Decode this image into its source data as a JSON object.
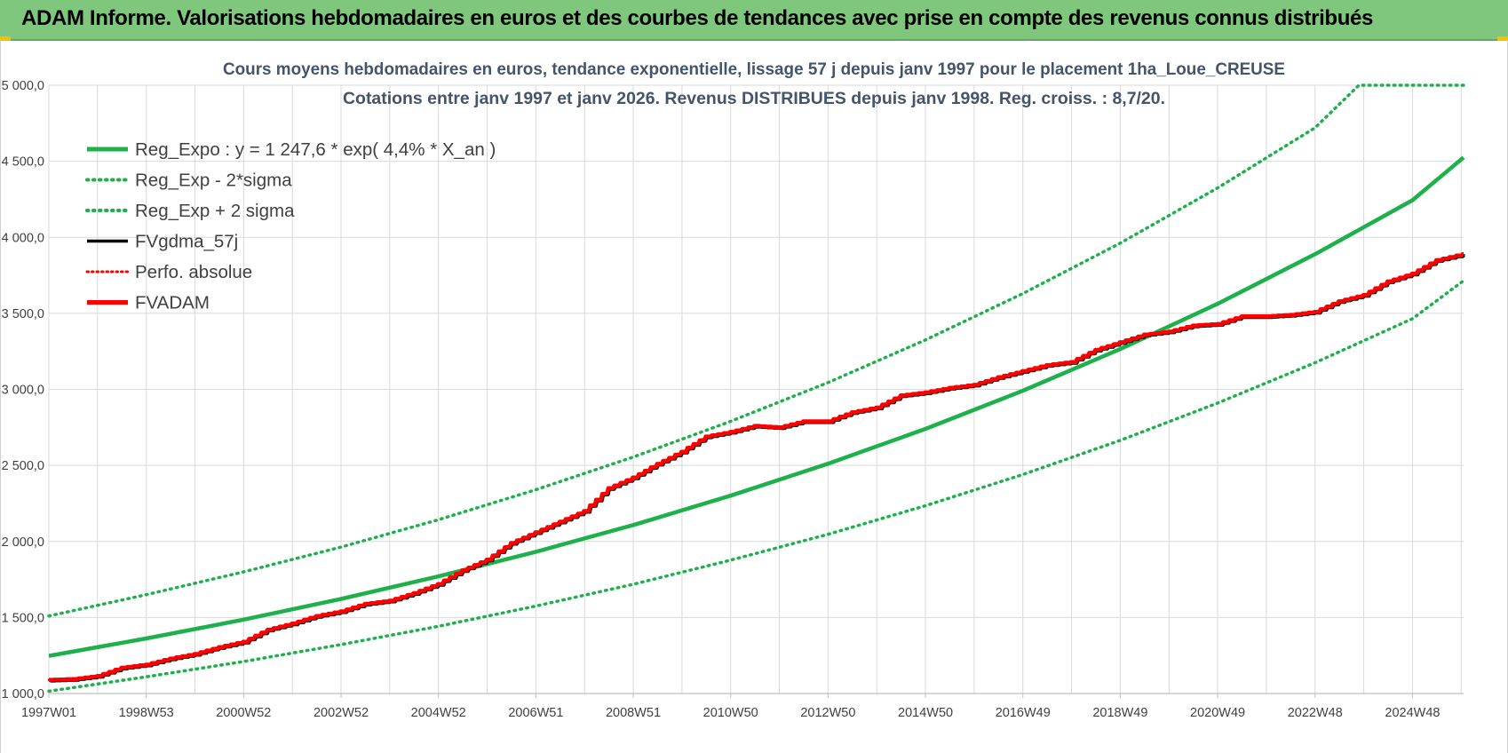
{
  "header": {
    "title": "ADAM Informe. Valorisations hebdomadaires en euros et des courbes de tendances avec prise en compte des revenus connus distribués"
  },
  "colors": {
    "header_bg": "#7ec77c",
    "trend_green": "#1db04b",
    "fvadam_red": "#ff0000",
    "fvgdma_black": "#000000",
    "grid": "#d9d9d9",
    "title_text": "#44546a"
  },
  "chart_data": {
    "type": "line",
    "title_line1": "Cours moyens hebdomadaires en euros, tendance exponentielle, lissage 57 j depuis janv 1997 pour le placement 1ha_Loue_CREUSE",
    "title_line2": "Cotations entre janv 1997 et janv 2026. Revenus DISTRIBUES depuis janv 1998. Reg. croiss. : 8,7/20.",
    "xlabel": "",
    "ylabel": "",
    "xlim": [
      1997.0,
      2026.05
    ],
    "ylim": [
      1000,
      5000
    ],
    "y_ticks": [
      "1 000,0",
      "1 500,0",
      "2 000,0",
      "2 500,0",
      "3 000,0",
      "3 500,0",
      "4 000,0",
      "4 500,0",
      "5 000,0"
    ],
    "y_tick_values": [
      1000,
      1500,
      2000,
      2500,
      3000,
      3500,
      4000,
      4500,
      5000
    ],
    "x_ticks": [
      "1997W01",
      "1998W53",
      "2000W52",
      "2002W52",
      "2004W52",
      "2006W51",
      "2008W51",
      "2010W50",
      "2012W50",
      "2014W50",
      "2016W49",
      "2018W49",
      "2020W49",
      "2022W48",
      "2024W48"
    ],
    "x_tick_values": [
      1997.0,
      1999.0,
      2001.0,
      2003.0,
      2005.0,
      2007.0,
      2009.0,
      2011.0,
      2013.0,
      2015.0,
      2017.0,
      2019.0,
      2021.0,
      2023.0,
      2025.0
    ],
    "grid": true,
    "legend_position": "top-left",
    "series": [
      {
        "name": "Reg_Expo : y = 1 247,6 * exp( 4,4% *  X_an )",
        "style": "solid-green",
        "points": [
          [
            1997.0,
            1247.6
          ],
          [
            1999.0,
            1362.3
          ],
          [
            2001.0,
            1486.0
          ],
          [
            2003.0,
            1621.7
          ],
          [
            2005.0,
            1770.0
          ],
          [
            2007.0,
            1932.0
          ],
          [
            2009.0,
            2108.0
          ],
          [
            2011.0,
            2301.0
          ],
          [
            2013.0,
            2511.0
          ],
          [
            2015.0,
            2740.0
          ],
          [
            2017.0,
            2991.0
          ],
          [
            2019.0,
            3265.0
          ],
          [
            2021.0,
            3563.0
          ],
          [
            2023.0,
            3889.0
          ],
          [
            2025.0,
            4244.0
          ],
          [
            2026.05,
            4525.0
          ]
        ]
      },
      {
        "name": "Reg_Exp - 2*sigma",
        "style": "dotted-green",
        "points": [
          [
            1997.0,
            1015.0
          ],
          [
            1999.0,
            1110.0
          ],
          [
            2001.0,
            1210.0
          ],
          [
            2003.0,
            1322.0
          ],
          [
            2005.0,
            1442.0
          ],
          [
            2007.0,
            1575.0
          ],
          [
            2009.0,
            1718.0
          ],
          [
            2011.0,
            1877.0
          ],
          [
            2013.0,
            2047.0
          ],
          [
            2015.0,
            2235.0
          ],
          [
            2017.0,
            2440.0
          ],
          [
            2019.0,
            2665.0
          ],
          [
            2021.0,
            2910.0
          ],
          [
            2023.0,
            3175.0
          ],
          [
            2025.0,
            3465.0
          ],
          [
            2026.05,
            3715.0
          ]
        ]
      },
      {
        "name": "Reg_Exp + 2 sigma",
        "style": "dotted-green",
        "points": [
          [
            1997.0,
            1510.0
          ],
          [
            1999.0,
            1650.0
          ],
          [
            2001.0,
            1800.0
          ],
          [
            2003.0,
            1963.0
          ],
          [
            2005.0,
            2143.0
          ],
          [
            2007.0,
            2340.0
          ],
          [
            2009.0,
            2555.0
          ],
          [
            2011.0,
            2790.0
          ],
          [
            2013.0,
            3045.0
          ],
          [
            2015.0,
            3325.0
          ],
          [
            2017.0,
            3630.0
          ],
          [
            2019.0,
            3962.0
          ],
          [
            2021.0,
            4325.0
          ],
          [
            2023.0,
            4720.0
          ],
          [
            2023.9,
            5000.0
          ],
          [
            2026.05,
            5000.0
          ]
        ]
      },
      {
        "name": "FVgdma_57j",
        "style": "solid-black",
        "points": [
          [
            1997.0,
            1090.0
          ],
          [
            1997.5,
            1095.0
          ],
          [
            1998.0,
            1115.0
          ],
          [
            1998.5,
            1170.0
          ],
          [
            1999.0,
            1190.0
          ],
          [
            1999.5,
            1230.0
          ],
          [
            2000.0,
            1260.0
          ],
          [
            2000.5,
            1305.0
          ],
          [
            2001.0,
            1340.0
          ],
          [
            2001.5,
            1420.0
          ],
          [
            2002.0,
            1460.0
          ],
          [
            2002.5,
            1510.0
          ],
          [
            2003.0,
            1540.0
          ],
          [
            2003.5,
            1590.0
          ],
          [
            2004.0,
            1610.0
          ],
          [
            2004.5,
            1660.0
          ],
          [
            2005.0,
            1720.0
          ],
          [
            2005.5,
            1810.0
          ],
          [
            2006.0,
            1880.0
          ],
          [
            2006.5,
            1990.0
          ],
          [
            2007.0,
            2060.0
          ],
          [
            2007.5,
            2130.0
          ],
          [
            2008.0,
            2200.0
          ],
          [
            2008.5,
            2350.0
          ],
          [
            2009.0,
            2420.0
          ],
          [
            2009.5,
            2510.0
          ],
          [
            2010.0,
            2590.0
          ],
          [
            2010.5,
            2690.0
          ],
          [
            2011.0,
            2720.0
          ],
          [
            2011.5,
            2760.0
          ],
          [
            2012.0,
            2750.0
          ],
          [
            2012.5,
            2790.0
          ],
          [
            2013.0,
            2790.0
          ],
          [
            2013.5,
            2850.0
          ],
          [
            2014.0,
            2880.0
          ],
          [
            2014.5,
            2960.0
          ],
          [
            2015.0,
            2980.0
          ],
          [
            2015.5,
            3010.0
          ],
          [
            2016.0,
            3030.0
          ],
          [
            2016.5,
            3080.0
          ],
          [
            2017.0,
            3120.0
          ],
          [
            2017.5,
            3160.0
          ],
          [
            2018.0,
            3180.0
          ],
          [
            2018.5,
            3260.0
          ],
          [
            2019.0,
            3310.0
          ],
          [
            2019.5,
            3360.0
          ],
          [
            2020.0,
            3380.0
          ],
          [
            2020.5,
            3420.0
          ],
          [
            2021.0,
            3430.0
          ],
          [
            2021.5,
            3480.0
          ],
          [
            2022.0,
            3480.0
          ],
          [
            2022.5,
            3490.0
          ],
          [
            2023.0,
            3510.0
          ],
          [
            2023.5,
            3580.0
          ],
          [
            2024.0,
            3620.0
          ],
          [
            2024.5,
            3710.0
          ],
          [
            2025.0,
            3760.0
          ],
          [
            2025.5,
            3850.0
          ],
          [
            2026.05,
            3890.0
          ]
        ]
      },
      {
        "name": "Perfo. absolue",
        "style": "dotted-red",
        "points": [
          [
            1997.0,
            1090.0
          ],
          [
            1997.5,
            1095.0
          ],
          [
            1998.0,
            1115.0
          ],
          [
            1998.5,
            1170.0
          ],
          [
            1999.0,
            1190.0
          ],
          [
            1999.5,
            1230.0
          ],
          [
            2000.0,
            1260.0
          ],
          [
            2000.5,
            1305.0
          ],
          [
            2001.0,
            1340.0
          ],
          [
            2001.5,
            1420.0
          ],
          [
            2002.0,
            1460.0
          ],
          [
            2002.5,
            1510.0
          ],
          [
            2003.0,
            1540.0
          ],
          [
            2003.5,
            1590.0
          ],
          [
            2004.0,
            1610.0
          ],
          [
            2004.5,
            1660.0
          ],
          [
            2005.0,
            1720.0
          ],
          [
            2005.5,
            1810.0
          ],
          [
            2006.0,
            1880.0
          ],
          [
            2006.5,
            1990.0
          ],
          [
            2007.0,
            2060.0
          ],
          [
            2007.5,
            2130.0
          ],
          [
            2008.0,
            2200.0
          ],
          [
            2008.5,
            2350.0
          ],
          [
            2009.0,
            2420.0
          ],
          [
            2009.5,
            2510.0
          ],
          [
            2010.0,
            2590.0
          ],
          [
            2010.5,
            2690.0
          ],
          [
            2011.0,
            2720.0
          ],
          [
            2011.5,
            2760.0
          ],
          [
            2012.0,
            2750.0
          ],
          [
            2012.5,
            2790.0
          ],
          [
            2013.0,
            2790.0
          ],
          [
            2013.5,
            2850.0
          ],
          [
            2014.0,
            2880.0
          ],
          [
            2014.5,
            2960.0
          ],
          [
            2015.0,
            2980.0
          ],
          [
            2015.5,
            3010.0
          ],
          [
            2016.0,
            3030.0
          ],
          [
            2016.5,
            3080.0
          ],
          [
            2017.0,
            3120.0
          ],
          [
            2017.5,
            3160.0
          ],
          [
            2018.0,
            3180.0
          ],
          [
            2018.5,
            3260.0
          ],
          [
            2019.0,
            3310.0
          ],
          [
            2019.5,
            3360.0
          ],
          [
            2020.0,
            3380.0
          ],
          [
            2020.5,
            3420.0
          ],
          [
            2021.0,
            3430.0
          ],
          [
            2021.5,
            3480.0
          ],
          [
            2022.0,
            3480.0
          ],
          [
            2022.5,
            3490.0
          ],
          [
            2023.0,
            3510.0
          ],
          [
            2023.5,
            3580.0
          ],
          [
            2024.0,
            3620.0
          ],
          [
            2024.5,
            3710.0
          ],
          [
            2025.0,
            3760.0
          ],
          [
            2025.5,
            3850.0
          ],
          [
            2026.05,
            3890.0
          ]
        ]
      },
      {
        "name": "FVADAM",
        "style": "solid-red",
        "points": [
          [
            1997.0,
            1090.0
          ],
          [
            1997.5,
            1095.0
          ],
          [
            1998.0,
            1115.0
          ],
          [
            1998.5,
            1170.0
          ],
          [
            1999.0,
            1190.0
          ],
          [
            1999.5,
            1230.0
          ],
          [
            2000.0,
            1260.0
          ],
          [
            2000.5,
            1305.0
          ],
          [
            2001.0,
            1340.0
          ],
          [
            2001.5,
            1420.0
          ],
          [
            2002.0,
            1460.0
          ],
          [
            2002.5,
            1510.0
          ],
          [
            2003.0,
            1540.0
          ],
          [
            2003.5,
            1590.0
          ],
          [
            2004.0,
            1610.0
          ],
          [
            2004.5,
            1660.0
          ],
          [
            2005.0,
            1720.0
          ],
          [
            2005.5,
            1810.0
          ],
          [
            2006.0,
            1880.0
          ],
          [
            2006.5,
            1990.0
          ],
          [
            2007.0,
            2060.0
          ],
          [
            2007.5,
            2130.0
          ],
          [
            2008.0,
            2200.0
          ],
          [
            2008.5,
            2350.0
          ],
          [
            2009.0,
            2420.0
          ],
          [
            2009.5,
            2510.0
          ],
          [
            2010.0,
            2590.0
          ],
          [
            2010.5,
            2690.0
          ],
          [
            2011.0,
            2720.0
          ],
          [
            2011.5,
            2760.0
          ],
          [
            2012.0,
            2750.0
          ],
          [
            2012.5,
            2790.0
          ],
          [
            2013.0,
            2790.0
          ],
          [
            2013.5,
            2850.0
          ],
          [
            2014.0,
            2880.0
          ],
          [
            2014.5,
            2960.0
          ],
          [
            2015.0,
            2980.0
          ],
          [
            2015.5,
            3010.0
          ],
          [
            2016.0,
            3030.0
          ],
          [
            2016.5,
            3080.0
          ],
          [
            2017.0,
            3120.0
          ],
          [
            2017.5,
            3160.0
          ],
          [
            2018.0,
            3180.0
          ],
          [
            2018.5,
            3260.0
          ],
          [
            2019.0,
            3310.0
          ],
          [
            2019.5,
            3360.0
          ],
          [
            2020.0,
            3380.0
          ],
          [
            2020.5,
            3420.0
          ],
          [
            2021.0,
            3430.0
          ],
          [
            2021.5,
            3480.0
          ],
          [
            2022.0,
            3480.0
          ],
          [
            2022.5,
            3490.0
          ],
          [
            2023.0,
            3510.0
          ],
          [
            2023.5,
            3580.0
          ],
          [
            2024.0,
            3620.0
          ],
          [
            2024.5,
            3710.0
          ],
          [
            2025.0,
            3760.0
          ],
          [
            2025.5,
            3850.0
          ],
          [
            2026.05,
            3890.0
          ]
        ]
      }
    ]
  }
}
